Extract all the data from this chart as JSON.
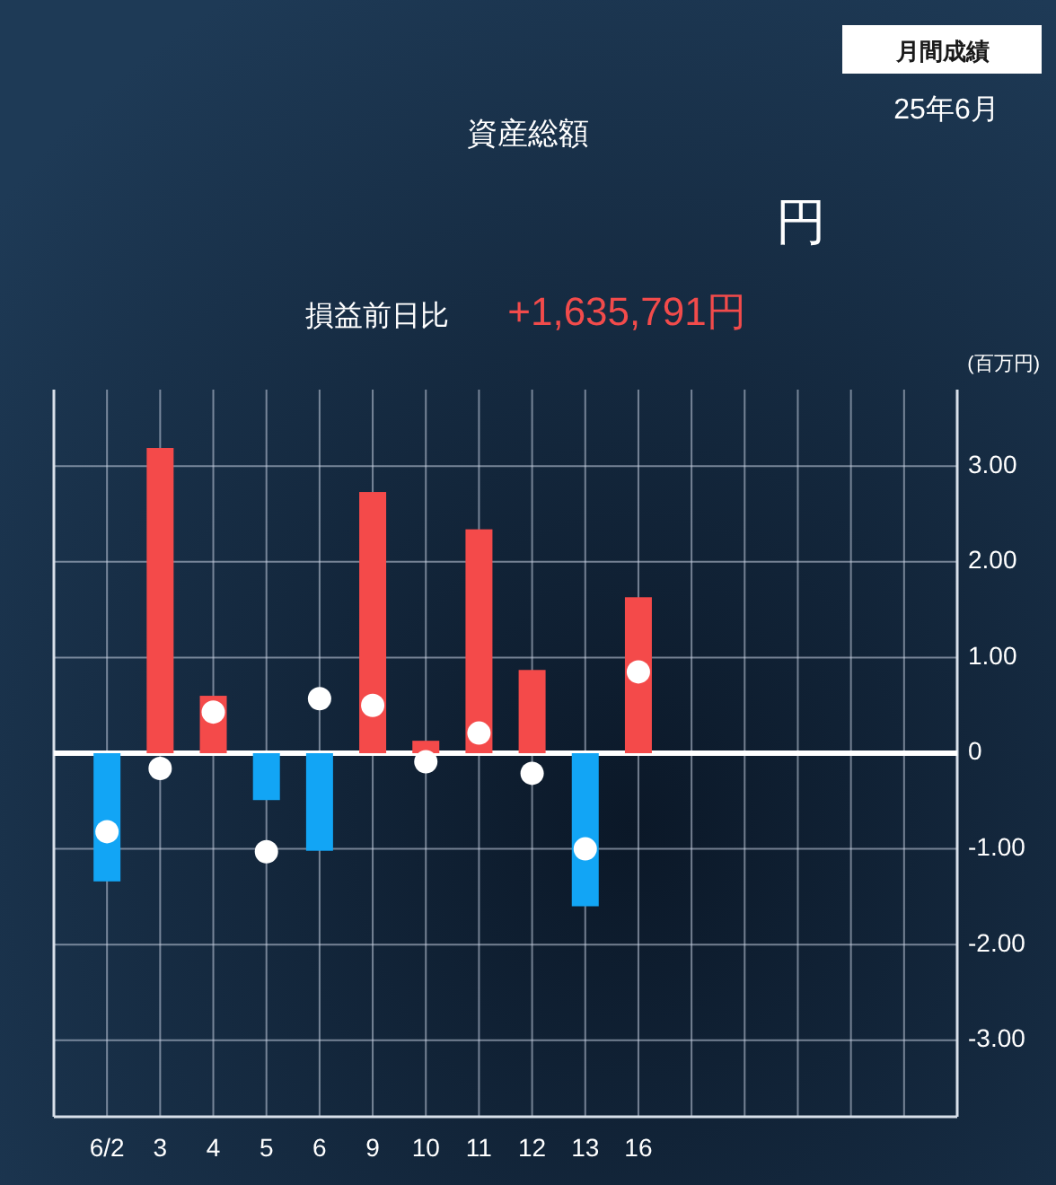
{
  "chart_data": {
    "type": "bar",
    "title": "資産総額",
    "ylabel": "(百万円)",
    "annotations": [
      "月間成績",
      "25年6月",
      "円",
      "損益前日比",
      "+1,635,791円"
    ],
    "categories": [
      "6/2",
      "3",
      "4",
      "5",
      "6",
      "9",
      "10",
      "11",
      "12",
      "13",
      "16",
      null,
      null,
      null,
      null,
      null
    ],
    "series": [
      {
        "values": [
          -1.34,
          3.19,
          0.6,
          -0.49,
          -1.02,
          2.73,
          0.13,
          2.34,
          0.87,
          -1.6,
          1.63,
          null,
          null,
          null,
          null,
          null
        ],
        "colors": [
          "#12a5f5",
          "#f44a4a",
          "#f44a4a",
          "#12a5f5",
          "#12a5f5",
          "#f44a4a",
          "#f44a4a",
          "#f44a4a",
          "#f44a4a",
          "#12a5f5",
          "#f44a4a",
          null,
          null,
          null,
          null,
          null
        ]
      },
      {
        "type": "scatter",
        "color": "#ffffff",
        "x": [
          "6/2",
          "3",
          "4",
          "5",
          "6",
          "9",
          "10",
          "11",
          "12",
          "13",
          "16"
        ],
        "values": [
          -0.82,
          -0.16,
          0.43,
          -1.03,
          0.57,
          0.5,
          -0.09,
          0.21,
          -0.21,
          -1.0,
          0.85
        ]
      }
    ],
    "ylim": [
      -3.8,
      3.8
    ],
    "yticks": [
      {
        "value": -3,
        "label": "-3.00"
      },
      {
        "value": -2,
        "label": "-2.00"
      },
      {
        "value": -1,
        "label": "-1.00"
      },
      0,
      {
        "value": 1,
        "label": "1.00"
      },
      {
        "value": 2,
        "label": "2.00"
      },
      {
        "value": 3,
        "label": "3.00"
      }
    ],
    "ref_lines": [
      {
        "axis": "y",
        "value": 0,
        "color": "#ffffff"
      }
    ],
    "grid": true,
    "marker": "circle"
  }
}
